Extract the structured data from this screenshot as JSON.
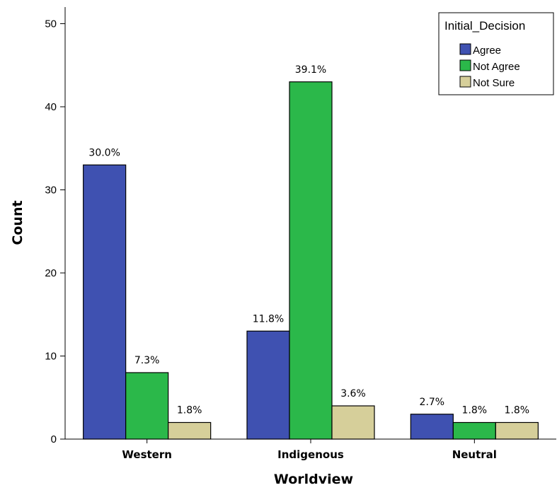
{
  "chart_data": {
    "type": "bar",
    "xlabel": "Worldview",
    "ylabel": "Count",
    "categories": [
      "Western",
      "Indigenous",
      "Neutral"
    ],
    "ylim": [
      0,
      52
    ],
    "yticks": [
      0,
      10,
      20,
      30,
      40,
      50
    ],
    "grid": false,
    "legend": {
      "title": "Initial_Decision",
      "position": "top-right"
    },
    "series": [
      {
        "name": "Agree",
        "color": "#3f51b1",
        "values": [
          33,
          13,
          3
        ],
        "labels": [
          "30.0%",
          "11.8%",
          "2.7%"
        ]
      },
      {
        "name": "Not Agree",
        "color": "#2bb84a",
        "values": [
          8,
          43,
          2
        ],
        "labels": [
          "7.3%",
          "39.1%",
          "1.8%"
        ]
      },
      {
        "name": "Not Sure",
        "color": "#d6cf9a",
        "values": [
          2,
          4,
          2
        ],
        "labels": [
          "1.8%",
          "3.6%",
          "1.8%"
        ]
      }
    ]
  }
}
